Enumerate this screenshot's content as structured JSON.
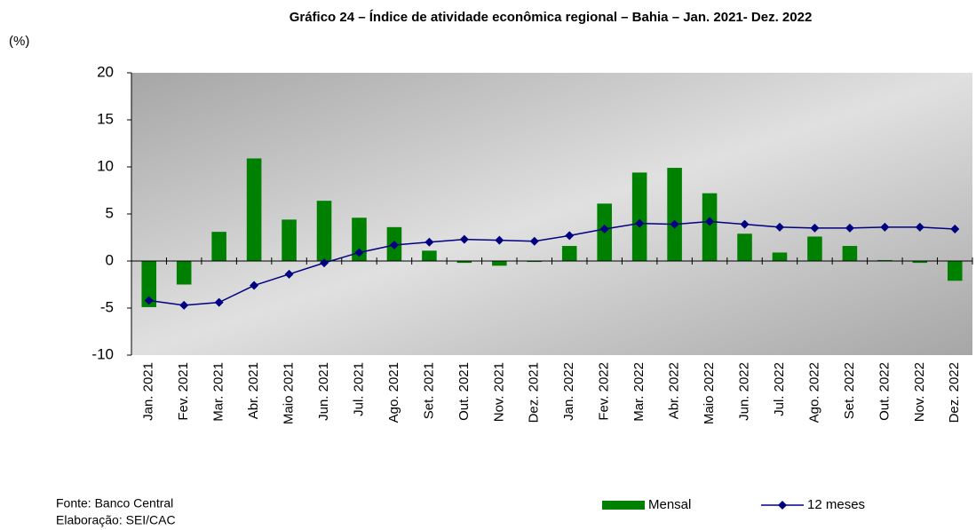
{
  "chart_data": {
    "type": "bar",
    "title": "Gráfico 24 – Índice de atividade econômica regional – Bahia – Jan. 2021- Dez. 2022",
    "y_label": "(%)",
    "categories": [
      "Jan. 2021",
      "Fev. 2021",
      "Mar. 2021",
      "Abr. 2021",
      "Maio 2021",
      "Jun. 2021",
      "Jul. 2021",
      "Ago. 2021",
      "Set. 2021",
      "Out. 2021",
      "Nov. 2021",
      "Dez. 2021",
      "Jan. 2022",
      "Fev. 2022",
      "Mar. 2022",
      "Abr. 2022",
      "Maio 2022",
      "Jun. 2022",
      "Jul. 2022",
      "Ago. 2022",
      "Set. 2022",
      "Out. 2022",
      "Nov. 2022",
      "Dez. 2022"
    ],
    "series": [
      {
        "name": "Mensal",
        "type": "bar",
        "color": "#008000",
        "values": [
          -4.9,
          -2.5,
          3.1,
          10.9,
          4.4,
          6.4,
          4.6,
          3.6,
          1.1,
          -0.2,
          -0.5,
          -0.1,
          1.6,
          6.1,
          9.4,
          9.9,
          7.2,
          2.9,
          0.9,
          2.6,
          1.6,
          0.1,
          -0.2,
          -2.1
        ]
      },
      {
        "name": "12 meses",
        "type": "line",
        "color": "#000080",
        "values": [
          -4.2,
          -4.7,
          -4.4,
          -2.6,
          -1.4,
          -0.2,
          0.9,
          1.7,
          2.0,
          2.3,
          2.2,
          2.1,
          2.7,
          3.4,
          4.0,
          3.9,
          4.2,
          3.9,
          3.6,
          3.5,
          3.5,
          3.6,
          3.6,
          3.4
        ]
      }
    ],
    "ylim": [
      -10,
      20
    ],
    "yticks": [
      -10,
      -5,
      0,
      5,
      10,
      15,
      20
    ],
    "legend": "bottom",
    "notes": [
      "Fonte: Banco Central",
      "Elaboração: SEI/CAC"
    ]
  }
}
